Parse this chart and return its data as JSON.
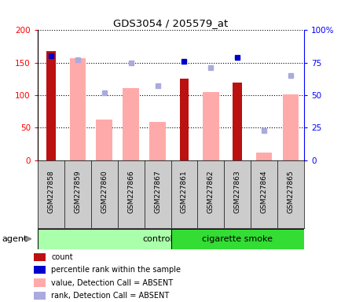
{
  "title": "GDS3054 / 205579_at",
  "samples": [
    "GSM227858",
    "GSM227859",
    "GSM227860",
    "GSM227866",
    "GSM227867",
    "GSM227861",
    "GSM227862",
    "GSM227863",
    "GSM227864",
    "GSM227865"
  ],
  "count_values": [
    168,
    null,
    null,
    null,
    null,
    125,
    null,
    119,
    null,
    null
  ],
  "absent_bar_values": [
    null,
    157,
    62,
    111,
    59,
    null,
    105,
    null,
    11,
    101
  ],
  "percentile_rank_present": [
    80,
    null,
    null,
    null,
    null,
    76,
    null,
    79,
    null,
    null
  ],
  "percentile_rank_absent": [
    null,
    77,
    52,
    75,
    57,
    null,
    71,
    null,
    23,
    65
  ],
  "ylim_left": [
    0,
    200
  ],
  "ylim_right": [
    0,
    100
  ],
  "yticks_left": [
    0,
    50,
    100,
    150,
    200
  ],
  "ytick_labels_left": [
    "0",
    "50",
    "100",
    "150",
    "200"
  ],
  "yticks_right": [
    0,
    25,
    50,
    75,
    100
  ],
  "ytick_labels_right": [
    "0",
    "25",
    "50",
    "75",
    "100%"
  ],
  "color_count": "#bb1111",
  "color_absent_bar": "#ffaaaa",
  "color_rank_present": "#0000cc",
  "color_rank_absent": "#aaaadd",
  "color_gray_bg": "#cccccc",
  "group_control_color": "#aaffaa",
  "group_smoke_color": "#33dd33",
  "legend_items": [
    {
      "label": "count",
      "color": "#bb1111"
    },
    {
      "label": "percentile rank within the sample",
      "color": "#0000cc"
    },
    {
      "label": "value, Detection Call = ABSENT",
      "color": "#ffaaaa"
    },
    {
      "label": "rank, Detection Call = ABSENT",
      "color": "#aaaadd"
    }
  ],
  "n_control": 5,
  "n_total": 10
}
